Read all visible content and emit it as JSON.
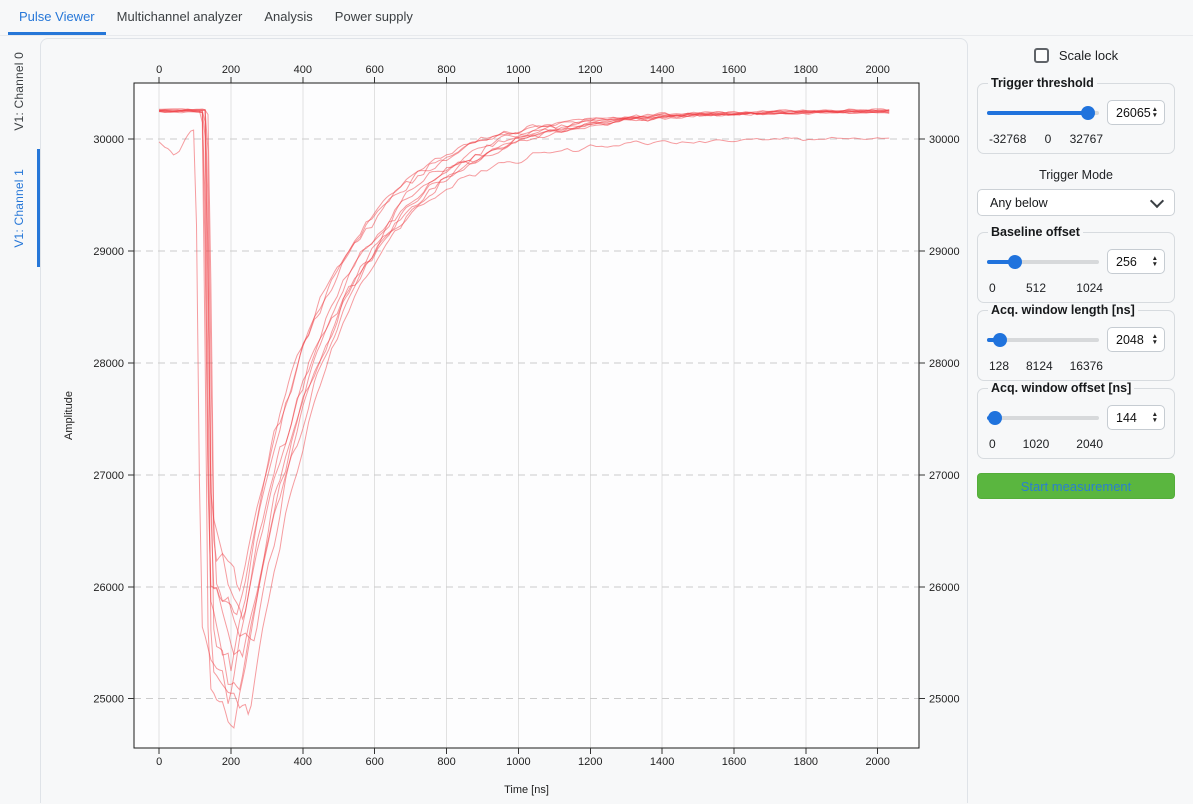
{
  "tabs": {
    "items": [
      {
        "label": "Pulse Viewer",
        "active": true
      },
      {
        "label": "Multichannel analyzer",
        "active": false
      },
      {
        "label": "Analysis",
        "active": false
      },
      {
        "label": "Power supply",
        "active": false
      }
    ]
  },
  "channel_tabs": {
    "items": [
      {
        "label": "V1: Channel 0",
        "active": false
      },
      {
        "label": "V1: Channel 1",
        "active": true
      }
    ]
  },
  "controls": {
    "scale_lock": {
      "label": "Scale lock",
      "checked": false
    },
    "trigger_threshold": {
      "label": "Trigger threshold",
      "value": 26065,
      "min": -32768,
      "max": 32767,
      "min_label": "-32768",
      "mid_label": "0",
      "max_label": "32767"
    },
    "trigger_mode": {
      "label": "Trigger Mode",
      "selected": "Any below"
    },
    "baseline_offset": {
      "label": "Baseline offset",
      "value": 256,
      "min": 0,
      "max": 1024,
      "min_label": "0",
      "mid_label": "512",
      "max_label": "1024"
    },
    "acq_window_length": {
      "label": "Acq. window length [ns]",
      "value": 2048,
      "min": 128,
      "max": 16376,
      "min_label": "128",
      "mid_label": "8124",
      "max_label": "16376"
    },
    "acq_window_offset": {
      "label": "Acq. window offset [ns]",
      "value": 144,
      "min": 0,
      "max": 2040,
      "min_label": "0",
      "mid_label": "1020",
      "max_label": "2040"
    },
    "start_button": {
      "label": "Start measurement"
    }
  },
  "icons": {
    "spin_up": "▲",
    "spin_down": "▼"
  },
  "colors": {
    "accent_blue": "#2677d8",
    "slider_blue": "#2073dd",
    "button_green": "#5ab63f",
    "button_text_blue": "#2a7fd0",
    "trace_red": "#ef3b42",
    "grid_gray": "#d9d9d9"
  },
  "chart_data": {
    "type": "line",
    "title": "",
    "xlabel": "Time [ns]",
    "ylabel": "Amplitude",
    "x_range": [
      -70,
      2115
    ],
    "y_range": [
      24560,
      30500
    ],
    "x_ticks": [
      0,
      200,
      400,
      600,
      800,
      1000,
      1200,
      1400,
      1600,
      1800,
      2000
    ],
    "y_ticks": [
      25000,
      26000,
      27000,
      28000,
      29000,
      30000
    ],
    "grid": true,
    "legend": false,
    "trace_color": "#ef3b42",
    "num_traces": 10,
    "sample_interval_ns": 8,
    "trace_end_ns": 2032,
    "baseline": 30250,
    "traces": [
      {
        "seed": 11,
        "baseline": 30260,
        "drop_start": 118,
        "min_time": 205,
        "min_value": 24600,
        "tau": 260
      },
      {
        "seed": 22,
        "baseline": 30250,
        "drop_start": 125,
        "min_time": 250,
        "min_value": 24800,
        "tau": 250
      },
      {
        "seed": 33,
        "baseline": 30255,
        "drop_start": 130,
        "min_time": 225,
        "min_value": 25050,
        "tau": 245
      },
      {
        "seed": 44,
        "baseline": 30245,
        "drop_start": 122,
        "min_time": 200,
        "min_value": 25200,
        "tau": 235
      },
      {
        "seed": 55,
        "baseline": 30260,
        "drop_start": 128,
        "min_time": 230,
        "min_value": 25300,
        "tau": 270
      },
      {
        "seed": 66,
        "baseline": 30250,
        "drop_start": 135,
        "min_time": 260,
        "min_value": 25450,
        "tau": 255
      },
      {
        "seed": 77,
        "baseline": 30240,
        "drop_start": 120,
        "min_time": 210,
        "min_value": 25600,
        "tau": 240
      },
      {
        "seed": 88,
        "baseline": 30255,
        "drop_start": 132,
        "min_time": 235,
        "min_value": 25750,
        "tau": 265
      },
      {
        "seed": 99,
        "baseline": 30250,
        "drop_start": 126,
        "min_time": 220,
        "min_value": 25900,
        "tau": 250
      },
      {
        "seed": 123,
        "baseline": 30010,
        "drop_start": 98,
        "min_time": 195,
        "min_value": 25000,
        "tau": 250,
        "predip": [
          [
            0,
            29980
          ],
          [
            24,
            29930
          ],
          [
            40,
            29870
          ],
          [
            56,
            29900
          ],
          [
            72,
            29990
          ],
          [
            88,
            30060
          ],
          [
            97,
            30070
          ]
        ]
      }
    ]
  }
}
